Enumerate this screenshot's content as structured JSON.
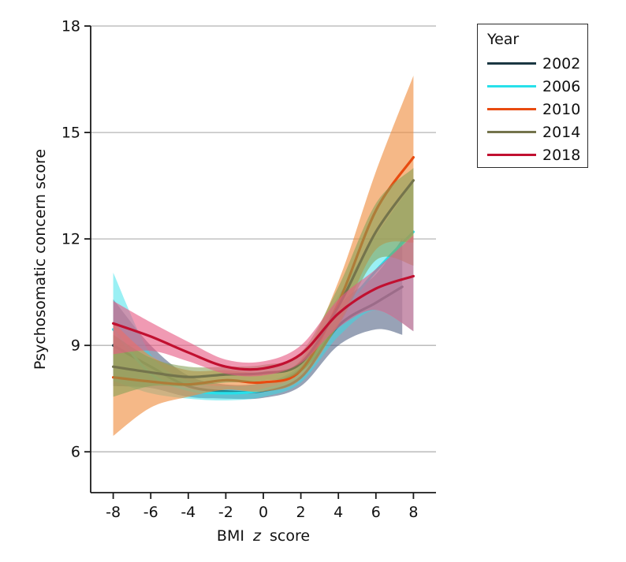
{
  "figure": {
    "background": "#ffffff",
    "axis_color": "#1a1a1a",
    "gridline_color": "#b5b5b5",
    "tick_label_color": "#111111",
    "ylabel": "Psychosomatic concern score",
    "xlabel_prefix": "BMI",
    "xlabel_italic": "z",
    "xlabel_suffix": "score"
  },
  "legend": {
    "title": "Year"
  },
  "chart_data": {
    "type": "line",
    "title": "",
    "xlabel": "BMI z score",
    "ylabel": "Psychosomatic concern score",
    "xlim": [
      -9.2,
      9.2
    ],
    "ylim": [
      4.85,
      18
    ],
    "xticks": [
      "-8",
      "-6",
      "-4",
      "-2",
      "0",
      "2",
      "4",
      "6",
      "8"
    ],
    "xtick_values": [
      -8,
      -6,
      -4,
      -2,
      0,
      2,
      4,
      6,
      8
    ],
    "yticks": [
      "6",
      "9",
      "12",
      "15",
      "18"
    ],
    "ytick_values": [
      6,
      9,
      12,
      15,
      18
    ],
    "grid": "horizontal-only",
    "legend_position": "outside-top-right",
    "legend_title": "Year",
    "band_meaning": "shaded 95% confidence band around each smoothed line",
    "series": [
      {
        "name": "2002",
        "line_color": "#1b3742",
        "band_color": "#44557a",
        "band_opacity": 0.55,
        "x": [
          -8,
          -6,
          -4,
          -2,
          0,
          2,
          4,
          6,
          7.4
        ],
        "y": [
          9.0,
          8.4,
          7.85,
          7.7,
          7.72,
          8.1,
          9.55,
          10.2,
          10.65
        ],
        "lo": [
          7.85,
          7.8,
          7.55,
          7.5,
          7.52,
          7.85,
          9.0,
          9.45,
          9.3
        ],
        "hi": [
          10.3,
          9.0,
          8.15,
          7.9,
          7.95,
          8.4,
          10.1,
          11.0,
          12.0
        ]
      },
      {
        "name": "2006",
        "line_color": "#27e0ea",
        "band_color": "#2bdfe8",
        "band_opacity": 0.48,
        "x": [
          -8,
          -6,
          -4,
          -2,
          0,
          2,
          4,
          6,
          8
        ],
        "y": [
          9.45,
          8.2,
          7.75,
          7.65,
          7.75,
          8.2,
          9.8,
          11.1,
          12.2
        ],
        "lo": [
          8.0,
          7.65,
          7.5,
          7.45,
          7.55,
          7.95,
          9.25,
          10.0,
          9.4
        ],
        "hi": [
          11.05,
          8.75,
          8.0,
          7.85,
          7.95,
          8.5,
          10.4,
          12.1,
          13.6
        ]
      },
      {
        "name": "2010",
        "line_color": "#e84b10",
        "band_color": "#ef8c3d",
        "band_opacity": 0.62,
        "x": [
          -8,
          -6,
          -4,
          -2,
          0,
          2,
          4,
          6,
          8
        ],
        "y": [
          8.1,
          7.98,
          7.9,
          8.02,
          7.96,
          8.3,
          10.2,
          12.8,
          14.3
        ],
        "lo": [
          6.45,
          7.25,
          7.55,
          7.75,
          7.7,
          8.05,
          9.6,
          11.7,
          11.9
        ],
        "hi": [
          9.65,
          8.7,
          8.3,
          8.3,
          8.25,
          8.6,
          10.8,
          13.9,
          16.6
        ]
      },
      {
        "name": "2014",
        "line_color": "#74744c",
        "band_color": "#85a156",
        "band_opacity": 0.58,
        "x": [
          -8,
          -6,
          -4,
          -2,
          0,
          2,
          4,
          6,
          8
        ],
        "y": [
          8.4,
          8.24,
          8.11,
          8.18,
          8.22,
          8.5,
          10.1,
          12.2,
          13.65
        ],
        "lo": [
          7.55,
          7.85,
          7.85,
          7.95,
          8.0,
          8.25,
          9.55,
          11.4,
          11.25
        ],
        "hi": [
          9.3,
          8.65,
          8.4,
          8.4,
          8.45,
          8.8,
          10.65,
          13.0,
          14.0
        ]
      },
      {
        "name": "2018",
        "line_color": "#c11030",
        "band_color": "#e75c85",
        "band_opacity": 0.62,
        "x": [
          -8,
          -6,
          -4,
          -2,
          0,
          2,
          4,
          6,
          8
        ],
        "y": [
          9.62,
          9.25,
          8.8,
          8.4,
          8.35,
          8.75,
          9.9,
          10.6,
          10.95
        ],
        "lo": [
          8.75,
          8.85,
          8.55,
          8.2,
          8.15,
          8.5,
          9.5,
          10.0,
          9.4
        ],
        "hi": [
          10.25,
          9.65,
          9.1,
          8.6,
          8.55,
          9.0,
          10.3,
          11.15,
          12.1
        ]
      }
    ]
  }
}
